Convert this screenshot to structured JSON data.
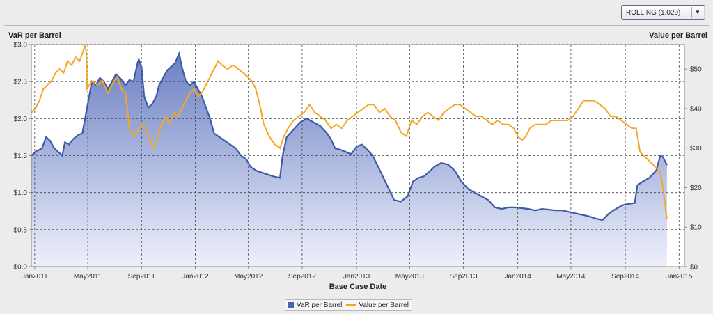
{
  "toolbar": {
    "dropdown_value": "ROLLING (1,029)"
  },
  "chart_data": {
    "type": "area+line",
    "left_axis_title": "VaR per Barrel",
    "right_axis_title": "Value per Barrel",
    "xlabel": "Base Case Date",
    "y_left": {
      "min": 0,
      "max": 3.0,
      "ticks": [
        0,
        0.5,
        1.0,
        1.5,
        2.0,
        2.5,
        3.0
      ],
      "tick_labels": [
        "$0.0",
        "$0.5",
        "$1.0",
        "$1.5",
        "$2.0",
        "$2.5",
        "$3.0"
      ]
    },
    "y_right": {
      "min": 0,
      "max": 56.2,
      "ticks": [
        0,
        10,
        20,
        30,
        40,
        50
      ],
      "tick_labels": [
        "$0",
        "$10",
        "$20",
        "$30",
        "$40",
        "$50"
      ]
    },
    "x_ticks": [
      {
        "label": "Jan2011",
        "t": 0.25
      },
      {
        "label": "May2011",
        "t": 4.2
      },
      {
        "label": "Sep2011",
        "t": 8.2
      },
      {
        "label": "Jan2012",
        "t": 12.2
      },
      {
        "label": "May2012",
        "t": 16.15
      },
      {
        "label": "Sep2012",
        "t": 20.15
      },
      {
        "label": "Jan2013",
        "t": 24.2
      },
      {
        "label": "May2013",
        "t": 28.15
      },
      {
        "label": "Sep2013",
        "t": 32.15
      },
      {
        "label": "Jan2014",
        "t": 36.2
      },
      {
        "label": "May2014",
        "t": 40.15
      },
      {
        "label": "Sep2014",
        "t": 44.2
      },
      {
        "label": "Jan2015",
        "t": 48.2
      }
    ],
    "x_range": [
      0,
      48.6
    ],
    "grid": true,
    "legend_position": "bottom-center",
    "series": [
      {
        "name": "VaR per Barrel",
        "type": "area",
        "axis": "left",
        "color": "#3f5aa8",
        "points": [
          [
            0,
            1.5
          ],
          [
            0.3,
            1.55
          ],
          [
            0.8,
            1.6
          ],
          [
            1.1,
            1.75
          ],
          [
            1.4,
            1.7
          ],
          [
            1.7,
            1.6
          ],
          [
            2.0,
            1.55
          ],
          [
            2.3,
            1.5
          ],
          [
            2.5,
            1.68
          ],
          [
            2.8,
            1.65
          ],
          [
            3.1,
            1.72
          ],
          [
            3.5,
            1.78
          ],
          [
            3.8,
            1.8
          ],
          [
            4.0,
            2.0
          ],
          [
            4.2,
            2.2
          ],
          [
            4.5,
            2.5
          ],
          [
            4.8,
            2.45
          ],
          [
            5.1,
            2.55
          ],
          [
            5.4,
            2.5
          ],
          [
            5.7,
            2.4
          ],
          [
            6.0,
            2.5
          ],
          [
            6.3,
            2.6
          ],
          [
            6.6,
            2.55
          ],
          [
            7.0,
            2.45
          ],
          [
            7.3,
            2.52
          ],
          [
            7.6,
            2.5
          ],
          [
            7.9,
            2.75
          ],
          [
            8.0,
            2.8
          ],
          [
            8.2,
            2.7
          ],
          [
            8.4,
            2.3
          ],
          [
            8.7,
            2.15
          ],
          [
            9.0,
            2.2
          ],
          [
            9.3,
            2.3
          ],
          [
            9.5,
            2.45
          ],
          [
            9.8,
            2.55
          ],
          [
            10.1,
            2.65
          ],
          [
            10.4,
            2.7
          ],
          [
            10.7,
            2.75
          ],
          [
            11.0,
            2.88
          ],
          [
            11.2,
            2.7
          ],
          [
            11.5,
            2.5
          ],
          [
            11.8,
            2.45
          ],
          [
            12.1,
            2.5
          ],
          [
            12.4,
            2.4
          ],
          [
            12.7,
            2.3
          ],
          [
            13.0,
            2.15
          ],
          [
            13.3,
            2.0
          ],
          [
            13.6,
            1.8
          ],
          [
            14.0,
            1.75
          ],
          [
            14.4,
            1.7
          ],
          [
            14.8,
            1.65
          ],
          [
            15.2,
            1.6
          ],
          [
            15.6,
            1.5
          ],
          [
            16.0,
            1.45
          ],
          [
            16.3,
            1.35
          ],
          [
            16.7,
            1.3
          ],
          [
            17.0,
            1.28
          ],
          [
            17.5,
            1.25
          ],
          [
            18.0,
            1.22
          ],
          [
            18.5,
            1.2
          ],
          [
            18.7,
            1.5
          ],
          [
            19.0,
            1.75
          ],
          [
            19.5,
            1.85
          ],
          [
            20.0,
            1.95
          ],
          [
            20.5,
            2.0
          ],
          [
            21.0,
            1.95
          ],
          [
            21.5,
            1.9
          ],
          [
            22.0,
            1.8
          ],
          [
            22.3,
            1.72
          ],
          [
            22.6,
            1.6
          ],
          [
            23.0,
            1.58
          ],
          [
            23.4,
            1.55
          ],
          [
            23.8,
            1.52
          ],
          [
            24.2,
            1.62
          ],
          [
            24.6,
            1.65
          ],
          [
            25.0,
            1.58
          ],
          [
            25.4,
            1.5
          ],
          [
            25.8,
            1.35
          ],
          [
            26.2,
            1.2
          ],
          [
            26.6,
            1.05
          ],
          [
            27.0,
            0.9
          ],
          [
            27.5,
            0.88
          ],
          [
            28.0,
            0.95
          ],
          [
            28.4,
            1.15
          ],
          [
            28.8,
            1.2
          ],
          [
            29.2,
            1.22
          ],
          [
            29.6,
            1.28
          ],
          [
            30.0,
            1.35
          ],
          [
            30.5,
            1.4
          ],
          [
            31.0,
            1.38
          ],
          [
            31.5,
            1.3
          ],
          [
            32.0,
            1.15
          ],
          [
            32.5,
            1.05
          ],
          [
            33.0,
            1.0
          ],
          [
            33.5,
            0.95
          ],
          [
            34.0,
            0.9
          ],
          [
            34.5,
            0.8
          ],
          [
            35.0,
            0.78
          ],
          [
            35.5,
            0.8
          ],
          [
            36.0,
            0.8
          ],
          [
            36.5,
            0.79
          ],
          [
            37.0,
            0.78
          ],
          [
            37.5,
            0.76
          ],
          [
            38.0,
            0.78
          ],
          [
            38.5,
            0.77
          ],
          [
            39.0,
            0.76
          ],
          [
            39.5,
            0.76
          ],
          [
            40.0,
            0.74
          ],
          [
            40.5,
            0.72
          ],
          [
            41.0,
            0.7
          ],
          [
            41.5,
            0.68
          ],
          [
            42.0,
            0.65
          ],
          [
            42.5,
            0.63
          ],
          [
            43.0,
            0.72
          ],
          [
            43.5,
            0.78
          ],
          [
            44.0,
            0.83
          ],
          [
            44.5,
            0.85
          ],
          [
            44.9,
            0.86
          ],
          [
            45.1,
            1.1
          ],
          [
            45.5,
            1.15
          ],
          [
            46.0,
            1.2
          ],
          [
            46.5,
            1.3
          ],
          [
            46.8,
            1.5
          ],
          [
            47.0,
            1.48
          ],
          [
            47.3,
            1.37
          ]
        ]
      },
      {
        "name": "Value per Barrel",
        "type": "line",
        "axis": "right",
        "color": "#f5a623",
        "points": [
          [
            0,
            39
          ],
          [
            0.3,
            40
          ],
          [
            0.6,
            42
          ],
          [
            0.9,
            45
          ],
          [
            1.2,
            46
          ],
          [
            1.5,
            47
          ],
          [
            1.8,
            49
          ],
          [
            2.1,
            50
          ],
          [
            2.4,
            49
          ],
          [
            2.7,
            52
          ],
          [
            3.0,
            51
          ],
          [
            3.3,
            53
          ],
          [
            3.6,
            52
          ],
          [
            3.9,
            55
          ],
          [
            4.0,
            56
          ],
          [
            4.1,
            54
          ],
          [
            4.15,
            45
          ],
          [
            4.5,
            47
          ],
          [
            4.9,
            46
          ],
          [
            5.3,
            47
          ],
          [
            5.7,
            44
          ],
          [
            6.0,
            46
          ],
          [
            6.4,
            48
          ],
          [
            6.7,
            45
          ],
          [
            7.0,
            44
          ],
          [
            7.3,
            35
          ],
          [
            7.6,
            33
          ],
          [
            7.9,
            34
          ],
          [
            8.2,
            36
          ],
          [
            8.5,
            35
          ],
          [
            8.8,
            32
          ],
          [
            9.1,
            30
          ],
          [
            9.4,
            33
          ],
          [
            9.7,
            36
          ],
          [
            10.0,
            38
          ],
          [
            10.3,
            36
          ],
          [
            10.6,
            39
          ],
          [
            10.9,
            38
          ],
          [
            11.2,
            40
          ],
          [
            11.5,
            42
          ],
          [
            11.8,
            44
          ],
          [
            12.1,
            45
          ],
          [
            12.4,
            43
          ],
          [
            12.7,
            44
          ],
          [
            13.0,
            46
          ],
          [
            13.3,
            48
          ],
          [
            13.6,
            50
          ],
          [
            13.9,
            52
          ],
          [
            14.2,
            51
          ],
          [
            14.6,
            50
          ],
          [
            15.0,
            51
          ],
          [
            15.4,
            50
          ],
          [
            15.8,
            49
          ],
          [
            16.1,
            48
          ],
          [
            16.4,
            47
          ],
          [
            16.7,
            45
          ],
          [
            17.0,
            41
          ],
          [
            17.3,
            36
          ],
          [
            17.7,
            33
          ],
          [
            18.1,
            31
          ],
          [
            18.5,
            30
          ],
          [
            18.8,
            33
          ],
          [
            19.1,
            35
          ],
          [
            19.5,
            37
          ],
          [
            19.9,
            38
          ],
          [
            20.3,
            39
          ],
          [
            20.7,
            41
          ],
          [
            21.1,
            39
          ],
          [
            21.5,
            38
          ],
          [
            21.9,
            37
          ],
          [
            22.3,
            35
          ],
          [
            22.7,
            36
          ],
          [
            23.1,
            35
          ],
          [
            23.5,
            37
          ],
          [
            23.9,
            38
          ],
          [
            24.3,
            39
          ],
          [
            24.7,
            40
          ],
          [
            25.1,
            41
          ],
          [
            25.5,
            41
          ],
          [
            25.9,
            39
          ],
          [
            26.3,
            40
          ],
          [
            26.7,
            38
          ],
          [
            27.1,
            37
          ],
          [
            27.5,
            34
          ],
          [
            27.9,
            33
          ],
          [
            28.3,
            37
          ],
          [
            28.7,
            36
          ],
          [
            29.1,
            38
          ],
          [
            29.5,
            39
          ],
          [
            29.9,
            38
          ],
          [
            30.3,
            37
          ],
          [
            30.7,
            39
          ],
          [
            31.1,
            40
          ],
          [
            31.5,
            41
          ],
          [
            31.9,
            41
          ],
          [
            32.3,
            40
          ],
          [
            32.7,
            39
          ],
          [
            33.1,
            38
          ],
          [
            33.5,
            38
          ],
          [
            33.9,
            37
          ],
          [
            34.3,
            36
          ],
          [
            34.7,
            37
          ],
          [
            35.1,
            36
          ],
          [
            35.5,
            36
          ],
          [
            35.9,
            35
          ],
          [
            36.2,
            33
          ],
          [
            36.5,
            32
          ],
          [
            36.8,
            33
          ],
          [
            37.1,
            35
          ],
          [
            37.5,
            36
          ],
          [
            37.9,
            36
          ],
          [
            38.3,
            36
          ],
          [
            38.7,
            37
          ],
          [
            39.1,
            37
          ],
          [
            39.5,
            37
          ],
          [
            39.9,
            37
          ],
          [
            40.3,
            38
          ],
          [
            40.7,
            40
          ],
          [
            41.1,
            42
          ],
          [
            41.5,
            42
          ],
          [
            41.9,
            42
          ],
          [
            42.3,
            41
          ],
          [
            42.7,
            40
          ],
          [
            43.1,
            38
          ],
          [
            43.5,
            38
          ],
          [
            43.9,
            37
          ],
          [
            44.3,
            36
          ],
          [
            44.7,
            35
          ],
          [
            45.0,
            35
          ],
          [
            45.3,
            29
          ],
          [
            45.6,
            28
          ],
          [
            45.9,
            27
          ],
          [
            46.2,
            26
          ],
          [
            46.5,
            25
          ],
          [
            46.8,
            24
          ],
          [
            47.0,
            20
          ],
          [
            47.3,
            12
          ]
        ]
      }
    ]
  }
}
